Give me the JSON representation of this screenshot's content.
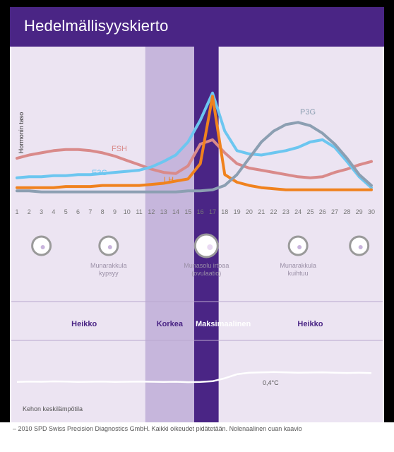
{
  "title": "Hedelmällisyyskierto",
  "copyright": "– 2010 SPD Swiss Precision Diagnostics GmbH. Kaikki oikeudet pidätetään. Nolenaalinen cuan kaavio",
  "colors": {
    "header": "#4a2585",
    "panel": "#ece4f2",
    "fertile_band": "#c6b6dc",
    "ovulation_band": "#4a2585",
    "phase_text": "#4a2585"
  },
  "chart_data": {
    "type": "line",
    "title": "Hedelmällisyyskierto",
    "ylabel": "Hormonin taso",
    "xlabel": "",
    "ylim": [
      0,
      100
    ],
    "x": [
      1,
      2,
      3,
      4,
      5,
      6,
      7,
      8,
      9,
      10,
      11,
      12,
      13,
      14,
      15,
      16,
      17,
      18,
      19,
      20,
      21,
      22,
      23,
      24,
      25,
      26,
      27,
      28,
      29,
      30
    ],
    "day_labels": [
      "1",
      "2",
      "3",
      "4",
      "5",
      "6",
      "7",
      "8",
      "9",
      "10",
      "11",
      "12",
      "13",
      "14",
      "15",
      "16",
      "17",
      "18",
      "19",
      "20",
      "21",
      "22",
      "23",
      "24",
      "25",
      "26",
      "27",
      "28",
      "29",
      "30"
    ],
    "series": [
      {
        "name": "FSH",
        "color": "#d98a8a",
        "values": [
          35,
          38,
          40,
          42,
          43,
          43,
          42,
          40,
          37,
          33,
          29,
          25,
          22,
          21,
          28,
          48,
          52,
          40,
          30,
          26,
          24,
          22,
          20,
          18,
          17,
          18,
          22,
          25,
          29,
          32
        ]
      },
      {
        "name": "E3G",
        "color": "#6cc6f0",
        "values": [
          17,
          18,
          18,
          19,
          19,
          20,
          20,
          21,
          22,
          23,
          24,
          27,
          32,
          38,
          50,
          70,
          95,
          60,
          42,
          39,
          38,
          40,
          42,
          45,
          50,
          52,
          45,
          32,
          18,
          8
        ]
      },
      {
        "name": "LH",
        "color": "#f0821e",
        "values": [
          8,
          8,
          8,
          8,
          9,
          9,
          9,
          10,
          10,
          10,
          10,
          11,
          12,
          14,
          16,
          30,
          92,
          20,
          13,
          10,
          8,
          7,
          6,
          6,
          6,
          6,
          6,
          6,
          6,
          6
        ]
      },
      {
        "name": "P3G",
        "color": "#8c9fb2",
        "values": [
          5,
          5,
          4,
          4,
          4,
          4,
          4,
          4,
          4,
          4,
          4,
          4,
          4,
          4,
          5,
          5,
          6,
          10,
          20,
          35,
          50,
          60,
          66,
          68,
          65,
          58,
          48,
          35,
          20,
          10
        ]
      }
    ],
    "regions": [
      {
        "from_day": 11.5,
        "to_day": 15.5,
        "label": "Korkea"
      },
      {
        "from_day": 15.5,
        "to_day": 17.5,
        "label": "Maksimaalinen"
      }
    ],
    "phase_labels": [
      {
        "day": 6.5,
        "label": "Heikko"
      },
      {
        "day": 25,
        "label": "Heikko"
      }
    ],
    "stages": [
      {
        "day": 3,
        "label": ""
      },
      {
        "day": 8.5,
        "label": "Munarakkula kypsyy"
      },
      {
        "day": 16.5,
        "label": "Munasolu irtoaa (ovulaatio)"
      },
      {
        "day": 24,
        "label": "Munarakkula kuihtuu"
      },
      {
        "day": 29,
        "label": ""
      }
    ],
    "temperature": {
      "label": "Kehon keskilämpötila",
      "annotation": "0,4°C",
      "values": [
        20,
        22,
        21,
        23,
        22,
        20,
        21,
        22,
        20,
        21,
        22,
        21,
        20,
        21,
        19,
        20,
        24,
        40,
        62,
        70,
        72,
        74,
        72,
        70,
        71,
        72,
        70,
        69,
        70,
        68
      ]
    }
  }
}
